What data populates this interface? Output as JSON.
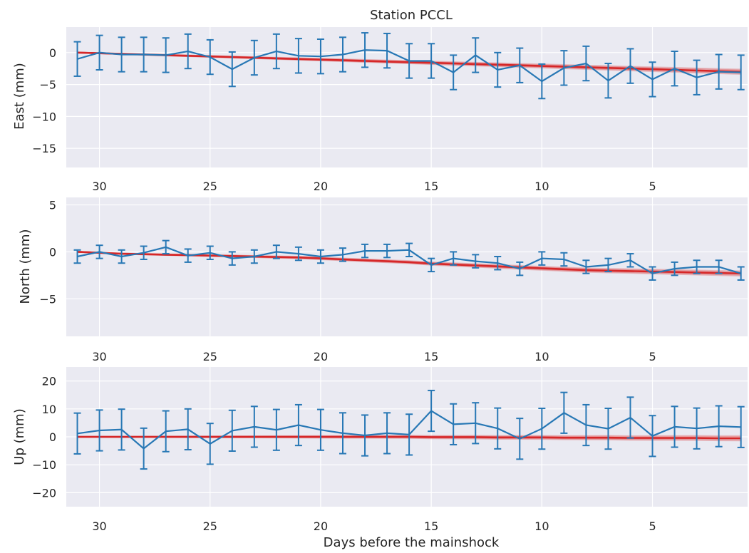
{
  "chart_data": {
    "type": "line",
    "title": "Station PCCL",
    "xlabel": "Days before the mainshock",
    "xlim": [
      31.5,
      0.7
    ],
    "xticks": [
      30,
      25,
      20,
      15,
      10,
      5
    ],
    "x": [
      31,
      30,
      29,
      28,
      27,
      26,
      25,
      24,
      23,
      22,
      21,
      20,
      19,
      18,
      17,
      16,
      15,
      14,
      13,
      12,
      11,
      10,
      9,
      8,
      7,
      6,
      5,
      4,
      3,
      2,
      1
    ],
    "colors": {
      "observed": "#2878b5",
      "model": "#d62728",
      "panel_bg": "#eaeaf2",
      "grid": "#ffffff"
    },
    "panels": [
      {
        "ylabel": "East (mm)",
        "ylim": [
          -18,
          4
        ],
        "yticks": [
          0,
          -5,
          -10,
          -15
        ],
        "observed": [
          -1.0,
          0.0,
          -0.3,
          -0.3,
          -0.4,
          0.2,
          -0.7,
          -2.6,
          -0.8,
          0.2,
          -0.5,
          -0.6,
          -0.3,
          0.4,
          0.3,
          -1.3,
          -1.3,
          -3.1,
          -0.4,
          -2.7,
          -2.0,
          -4.5,
          -2.4,
          -1.7,
          -4.4,
          -2.1,
          -4.2,
          -2.5,
          -3.9,
          -3.0,
          -3.1
        ],
        "error": 2.7,
        "model": [
          0.0,
          -0.1,
          -0.2,
          -0.3,
          -0.4,
          -0.5,
          -0.6,
          -0.7,
          -0.8,
          -0.9,
          -1.0,
          -1.1,
          -1.2,
          -1.3,
          -1.4,
          -1.5,
          -1.6,
          -1.7,
          -1.8,
          -1.9,
          -2.0,
          -2.1,
          -2.2,
          -2.3,
          -2.4,
          -2.5,
          -2.6,
          -2.7,
          -2.8,
          -2.9,
          -3.0
        ]
      },
      {
        "ylabel": "North (mm)",
        "ylim": [
          -9,
          5.8
        ],
        "yticks": [
          5,
          0,
          -5
        ],
        "observed": [
          -0.5,
          0.0,
          -0.5,
          -0.1,
          0.5,
          -0.4,
          -0.1,
          -0.7,
          -0.5,
          0.0,
          -0.2,
          -0.5,
          -0.3,
          0.1,
          0.1,
          0.2,
          -1.4,
          -0.7,
          -1.0,
          -1.2,
          -1.8,
          -0.7,
          -0.8,
          -1.6,
          -1.4,
          -0.9,
          -2.3,
          -1.8,
          -1.6,
          -1.6,
          -2.3
        ],
        "error": 0.7,
        "model": [
          0.0,
          -0.1,
          -0.2,
          -0.25,
          -0.3,
          -0.35,
          -0.4,
          -0.45,
          -0.5,
          -0.55,
          -0.6,
          -0.7,
          -0.8,
          -0.9,
          -1.0,
          -1.1,
          -1.25,
          -1.35,
          -1.45,
          -1.55,
          -1.65,
          -1.75,
          -1.85,
          -1.95,
          -2.0,
          -2.05,
          -2.1,
          -2.15,
          -2.2,
          -2.25,
          -2.3
        ]
      },
      {
        "ylabel": "Up (mm)",
        "ylim": [
          -25,
          25
        ],
        "yticks": [
          20,
          10,
          0,
          -10,
          -20
        ],
        "observed": [
          1.2,
          2.3,
          2.6,
          -4.2,
          2.0,
          2.7,
          -2.5,
          2.2,
          3.6,
          2.5,
          4.2,
          2.5,
          1.3,
          0.5,
          1.3,
          0.8,
          9.3,
          4.5,
          4.9,
          3.0,
          -0.7,
          2.9,
          8.6,
          4.2,
          2.9,
          6.9,
          0.3,
          3.6,
          3.0,
          3.8,
          3.5
        ],
        "error": 7.3,
        "model": [
          0,
          0,
          0,
          0,
          0,
          0,
          0,
          0,
          0,
          0,
          0,
          0,
          0,
          0,
          0,
          0,
          -0.1,
          -0.1,
          -0.1,
          -0.2,
          -0.2,
          -0.2,
          -0.3,
          -0.3,
          -0.3,
          -0.4,
          -0.4,
          -0.4,
          -0.4,
          -0.5,
          -0.5
        ]
      }
    ]
  }
}
